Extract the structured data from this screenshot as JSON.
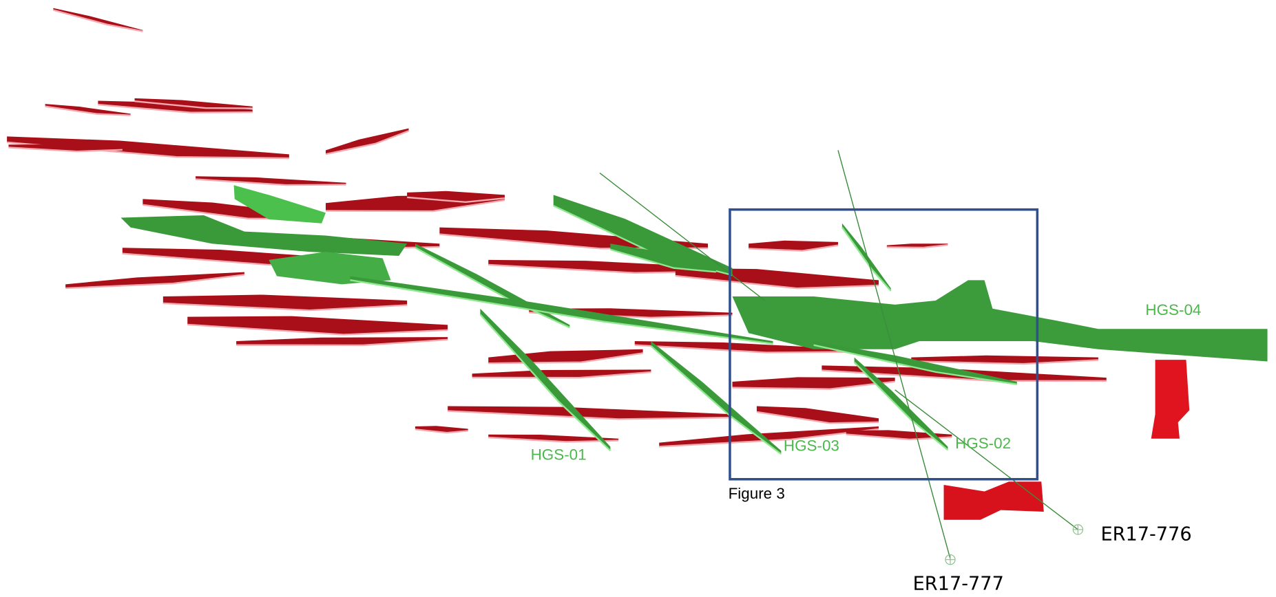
{
  "zones": [
    "HGS-01",
    "HGS-02",
    "HGS-03",
    "HGS-04"
  ],
  "figure_box": "Figure 3",
  "drillholes": [
    "ER17-777",
    "ER17-776"
  ]
}
